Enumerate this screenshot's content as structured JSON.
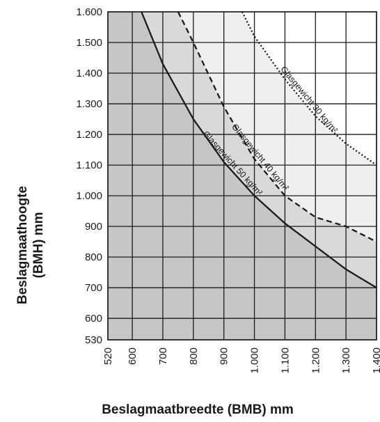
{
  "chart_data": {
    "type": "line",
    "xlabel": "Beslagmaatbreedte (BMB) mm",
    "ylabel_line1": "Beslagmaathoogte",
    "ylabel_line2": "(BMH) mm",
    "xlim": [
      520,
      1400
    ],
    "ylim": [
      530,
      1600
    ],
    "x_ticks": [
      {
        "value": 520,
        "label": "520"
      },
      {
        "value": 600,
        "label": "600"
      },
      {
        "value": 700,
        "label": "700"
      },
      {
        "value": 800,
        "label": "800"
      },
      {
        "value": 900,
        "label": "900"
      },
      {
        "value": 1000,
        "label": "1.000"
      },
      {
        "value": 1100,
        "label": "1.100"
      },
      {
        "value": 1200,
        "label": "1.200"
      },
      {
        "value": 1300,
        "label": "1.300"
      },
      {
        "value": 1400,
        "label": "1.400"
      }
    ],
    "y_ticks": [
      {
        "value": 530,
        "label": "530"
      },
      {
        "value": 600,
        "label": "600"
      },
      {
        "value": 700,
        "label": "700"
      },
      {
        "value": 800,
        "label": "800"
      },
      {
        "value": 900,
        "label": "900"
      },
      {
        "value": 1000,
        "label": "1.000"
      },
      {
        "value": 1100,
        "label": "1.100"
      },
      {
        "value": 1200,
        "label": "1.200"
      },
      {
        "value": 1300,
        "label": "1.300"
      },
      {
        "value": 1400,
        "label": "1.400"
      },
      {
        "value": 1500,
        "label": "1.500"
      },
      {
        "value": 1600,
        "label": "1.600"
      }
    ],
    "grid": true,
    "series": [
      {
        "name": "Glasgewicht  30 kg/m²",
        "style": "dotted",
        "fill": "#efefef",
        "area_const": 1200000,
        "x": [
          960,
          1000,
          1100,
          1200,
          1300,
          1400
        ],
        "y": [
          1600,
          1520,
          1380,
          1260,
          1170,
          1100
        ]
      },
      {
        "name": "Glasgewicht  40 kg/m²",
        "style": "dashed",
        "fill": "#d9d9d9",
        "area_const": 1200000,
        "x": [
          750,
          800,
          900,
          1000,
          1100,
          1200,
          1300,
          1400
        ],
        "y": [
          1600,
          1500,
          1290,
          1120,
          1000,
          930,
          900,
          850
        ]
      },
      {
        "name": "Glasgewicht  50 kg/m²",
        "style": "solid",
        "fill": "#c6c6c6",
        "area_const": 1000000,
        "x": [
          630,
          700,
          800,
          900,
          1000,
          1100,
          1200,
          1300,
          1400
        ],
        "y": [
          1600,
          1430,
          1250,
          1110,
          1000,
          910,
          835,
          760,
          700
        ]
      }
    ],
    "colors": {
      "region_outside": "#ffffff",
      "grid": "#1a1a1a",
      "curves": "#1a1a1a"
    }
  }
}
